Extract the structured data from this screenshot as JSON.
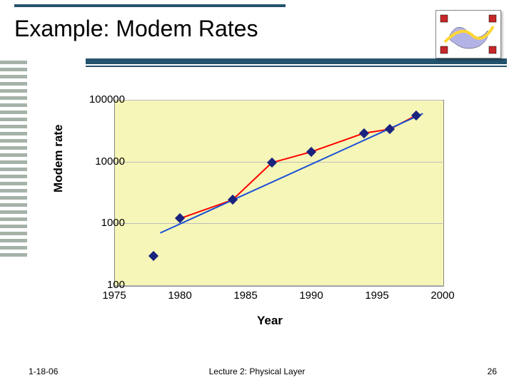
{
  "title": "Example: Modem Rates",
  "footer": {
    "date": "1-18-06",
    "center": "Lecture 2: Physical Layer",
    "page": "26"
  },
  "chart": {
    "type": "scatter-line-log",
    "ylabel": "Modem rate",
    "xlabel": "Year",
    "plot_background": "#f6f6b8",
    "grid_color": "#bdbdbd",
    "marker_color": "#1a237e",
    "data_line_color": "#ff0000",
    "trend_line_color": "#1a4fd6",
    "line_width": 2,
    "marker_size": 10,
    "xlim": [
      1975,
      2000
    ],
    "ylim_log10": [
      2,
      5
    ],
    "x_ticks": [
      1975,
      1980,
      1985,
      1990,
      1995,
      2000
    ],
    "y_ticks": [
      100,
      1000,
      10000,
      100000
    ],
    "points": [
      {
        "x": 1978,
        "y": 300
      },
      {
        "x": 1980,
        "y": 1200
      },
      {
        "x": 1984,
        "y": 2400
      },
      {
        "x": 1987,
        "y": 9600
      },
      {
        "x": 1990,
        "y": 14400
      },
      {
        "x": 1994,
        "y": 28800
      },
      {
        "x": 1996,
        "y": 33600
      },
      {
        "x": 1998,
        "y": 56000
      }
    ],
    "data_line_indices": [
      1,
      2,
      3,
      4,
      5,
      6,
      7
    ],
    "trend_line": {
      "x1": 1978.5,
      "y1": 700,
      "x2": 1998.5,
      "y2": 60000
    }
  },
  "accent_color": "#24536e",
  "logo": {
    "square_color": "#c62828",
    "blob_color": "#b3b3e6",
    "curve_color": "#ffd633"
  }
}
